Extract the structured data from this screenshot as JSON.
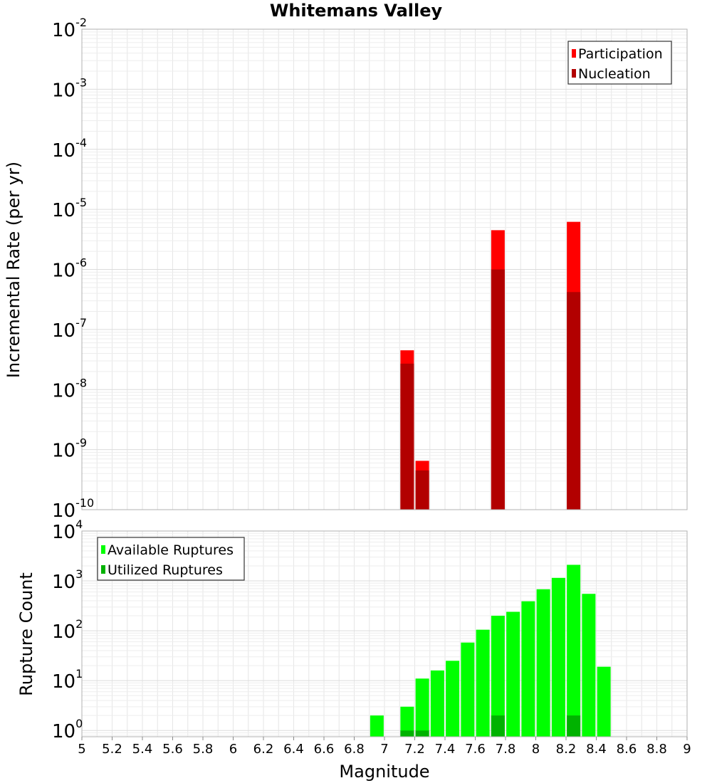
{
  "title": "Whitemans Valley",
  "chart_data": [
    {
      "type": "bar",
      "ylabel": "Incremental Rate (per yr)",
      "yscale": "log",
      "ylim": [
        1e-10,
        0.01
      ],
      "xlim": [
        5,
        9
      ],
      "grid": true,
      "legend_position": "top-right",
      "series": [
        {
          "name": "Participation",
          "color": "#ff0000",
          "points": [
            {
              "x": 7.15,
              "y": 4.5e-08
            },
            {
              "x": 7.25,
              "y": 6.5e-10
            },
            {
              "x": 7.75,
              "y": 4.5e-06
            },
            {
              "x": 8.25,
              "y": 6.2e-06
            }
          ]
        },
        {
          "name": "Nucleation",
          "color": "#b20000",
          "points": [
            {
              "x": 7.15,
              "y": 2.7e-08
            },
            {
              "x": 7.25,
              "y": 4.5e-10
            },
            {
              "x": 7.75,
              "y": 1e-06
            },
            {
              "x": 8.25,
              "y": 4.2e-07
            }
          ]
        }
      ]
    },
    {
      "type": "bar",
      "xlabel": "Magnitude",
      "ylabel": "Rupture Count",
      "yscale": "log",
      "ylim": [
        0.75,
        10000
      ],
      "xlim": [
        5,
        9
      ],
      "grid": true,
      "legend_position": "top-left",
      "series": [
        {
          "name": "Available Ruptures",
          "color": "#00ff00",
          "points": [
            {
              "x": 6.95,
              "y": 2
            },
            {
              "x": 7.15,
              "y": 3
            },
            {
              "x": 7.25,
              "y": 11
            },
            {
              "x": 7.35,
              "y": 16
            },
            {
              "x": 7.45,
              "y": 25
            },
            {
              "x": 7.55,
              "y": 58
            },
            {
              "x": 7.65,
              "y": 105
            },
            {
              "x": 7.75,
              "y": 200
            },
            {
              "x": 7.85,
              "y": 240
            },
            {
              "x": 7.95,
              "y": 390
            },
            {
              "x": 8.05,
              "y": 680
            },
            {
              "x": 8.15,
              "y": 1150
            },
            {
              "x": 8.25,
              "y": 2100
            },
            {
              "x": 8.35,
              "y": 550
            },
            {
              "x": 8.45,
              "y": 19
            }
          ]
        },
        {
          "name": "Utilized Ruptures",
          "color": "#00b200",
          "points": [
            {
              "x": 7.15,
              "y": 1
            },
            {
              "x": 7.25,
              "y": 1
            },
            {
              "x": 7.75,
              "y": 2
            },
            {
              "x": 8.25,
              "y": 2
            }
          ]
        }
      ]
    }
  ],
  "x_ticks": [
    "5",
    "5.2",
    "5.4",
    "5.6",
    "5.8",
    "6",
    "6.2",
    "6.4",
    "6.6",
    "6.8",
    "7",
    "7.2",
    "7.4",
    "7.6",
    "7.8",
    "8",
    "8.2",
    "8.4",
    "8.6",
    "8.8",
    "9"
  ],
  "top_y_ticks": [
    {
      "base": "10",
      "exp": "-2"
    },
    {
      "base": "10",
      "exp": "-3"
    },
    {
      "base": "10",
      "exp": "-4"
    },
    {
      "base": "10",
      "exp": "-5"
    },
    {
      "base": "10",
      "exp": "-6"
    },
    {
      "base": "10",
      "exp": "-7"
    },
    {
      "base": "10",
      "exp": "-8"
    },
    {
      "base": "10",
      "exp": "-9"
    },
    {
      "base": "10",
      "exp": "-10"
    }
  ],
  "bottom_y_ticks": [
    {
      "base": "10",
      "exp": "4"
    },
    {
      "base": "10",
      "exp": "3"
    },
    {
      "base": "10",
      "exp": "2"
    },
    {
      "base": "10",
      "exp": "1"
    },
    {
      "base": "10",
      "exp": "0"
    }
  ]
}
